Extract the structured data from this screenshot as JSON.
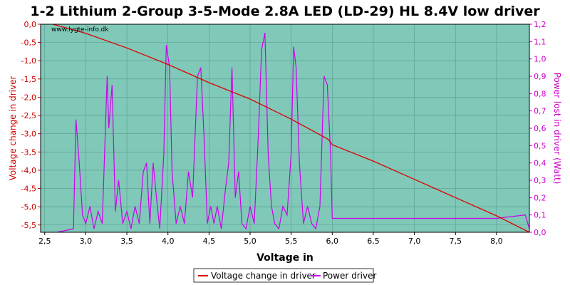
{
  "chart_data": {
    "type": "line",
    "title": "1-2 Lithium 2-Group 3-5-Mode 2.8A LED (LD-29) HL 8.4V low driver",
    "watermark": "www.lygte-info.dk",
    "xlabel": "Voltage in",
    "ylabel_left": "Voltage change in driver",
    "ylabel_right": "Power lost in driver (Watt)",
    "xlim": [
      2.45,
      8.4
    ],
    "ylim_left": [
      -5.7,
      0.0
    ],
    "ylim_right": [
      0.0,
      1.2
    ],
    "xticks": [
      "2,5",
      "3,0",
      "3,5",
      "4,0",
      "4,5",
      "5,0",
      "5,5",
      "6,0",
      "6,5",
      "7,0",
      "7,5",
      "8,0"
    ],
    "xtick_values": [
      2.5,
      3.0,
      3.5,
      4.0,
      4.5,
      5.0,
      5.5,
      6.0,
      6.5,
      7.0,
      7.5,
      8.0
    ],
    "yticks_left": [
      "0,0",
      "-0,5",
      "-1,0",
      "-1,5",
      "-2,0",
      "-2,5",
      "-3,0",
      "-3,5",
      "-4,0",
      "-4,5",
      "-5,0",
      "-5,5"
    ],
    "ytick_values_left": [
      0,
      -0.5,
      -1.0,
      -1.5,
      -2.0,
      -2.5,
      -3.0,
      -3.5,
      -4.0,
      -4.5,
      -5.0,
      -5.5
    ],
    "yticks_right": [
      "0,0",
      "0,1",
      "0,2",
      "0,3",
      "0,4",
      "0,5",
      "0,6",
      "0,7",
      "0,8",
      "0,9",
      "1,0",
      "1,1",
      "1,2"
    ],
    "ytick_values_right": [
      0,
      0.1,
      0.2,
      0.3,
      0.4,
      0.5,
      0.6,
      0.7,
      0.8,
      0.9,
      1.0,
      1.1,
      1.2
    ],
    "grid": true,
    "legend_position": "bottom-center",
    "colors": {
      "plot_bg": "#80c8b8",
      "voltage": "#dd0000",
      "power": "#cc00ee",
      "left_axis": "#cc0000",
      "right_axis": "#cc00cc"
    },
    "series": [
      {
        "name": "Voltage change in driver",
        "axis": "left",
        "x": [
          2.6,
          3.0,
          3.5,
          4.0,
          4.5,
          5.0,
          5.5,
          5.95,
          6.0,
          6.5,
          7.0,
          7.5,
          8.0,
          8.4
        ],
        "y": [
          0.0,
          -0.25,
          -0.65,
          -1.1,
          -1.6,
          -2.05,
          -2.6,
          -3.15,
          -3.3,
          -3.75,
          -4.25,
          -4.75,
          -5.25,
          -5.7
        ]
      },
      {
        "name": "Power driver",
        "axis": "right",
        "x": [
          2.65,
          2.85,
          2.88,
          2.92,
          2.96,
          3.0,
          3.05,
          3.1,
          3.15,
          3.2,
          3.26,
          3.28,
          3.32,
          3.36,
          3.4,
          3.45,
          3.5,
          3.55,
          3.6,
          3.65,
          3.7,
          3.74,
          3.78,
          3.82,
          3.86,
          3.9,
          3.95,
          3.98,
          4.02,
          4.05,
          4.1,
          4.15,
          4.2,
          4.25,
          4.3,
          4.36,
          4.4,
          4.44,
          4.48,
          4.52,
          4.56,
          4.6,
          4.65,
          4.7,
          4.74,
          4.78,
          4.82,
          4.86,
          4.9,
          4.95,
          5.0,
          5.05,
          5.1,
          5.14,
          5.18,
          5.22,
          5.26,
          5.3,
          5.35,
          5.4,
          5.45,
          5.5,
          5.53,
          5.56,
          5.6,
          5.65,
          5.7,
          5.75,
          5.8,
          5.85,
          5.9,
          5.94,
          5.98,
          6.0,
          6.5,
          7.0,
          7.5,
          8.0,
          8.35,
          8.4
        ],
        "y": [
          0.0,
          0.02,
          0.65,
          0.4,
          0.1,
          0.05,
          0.15,
          0.02,
          0.12,
          0.05,
          0.9,
          0.6,
          0.85,
          0.12,
          0.3,
          0.05,
          0.12,
          0.02,
          0.15,
          0.05,
          0.35,
          0.4,
          0.05,
          0.4,
          0.2,
          0.02,
          0.45,
          1.08,
          0.95,
          0.35,
          0.05,
          0.15,
          0.05,
          0.35,
          0.2,
          0.9,
          0.95,
          0.55,
          0.05,
          0.15,
          0.05,
          0.15,
          0.02,
          0.25,
          0.4,
          0.95,
          0.2,
          0.35,
          0.05,
          0.02,
          0.15,
          0.05,
          0.55,
          1.05,
          1.15,
          0.45,
          0.15,
          0.05,
          0.02,
          0.15,
          0.1,
          0.45,
          1.07,
          0.95,
          0.4,
          0.05,
          0.15,
          0.05,
          0.02,
          0.15,
          0.9,
          0.85,
          0.45,
          0.08,
          0.08,
          0.08,
          0.08,
          0.08,
          0.1,
          0.02
        ]
      }
    ]
  }
}
